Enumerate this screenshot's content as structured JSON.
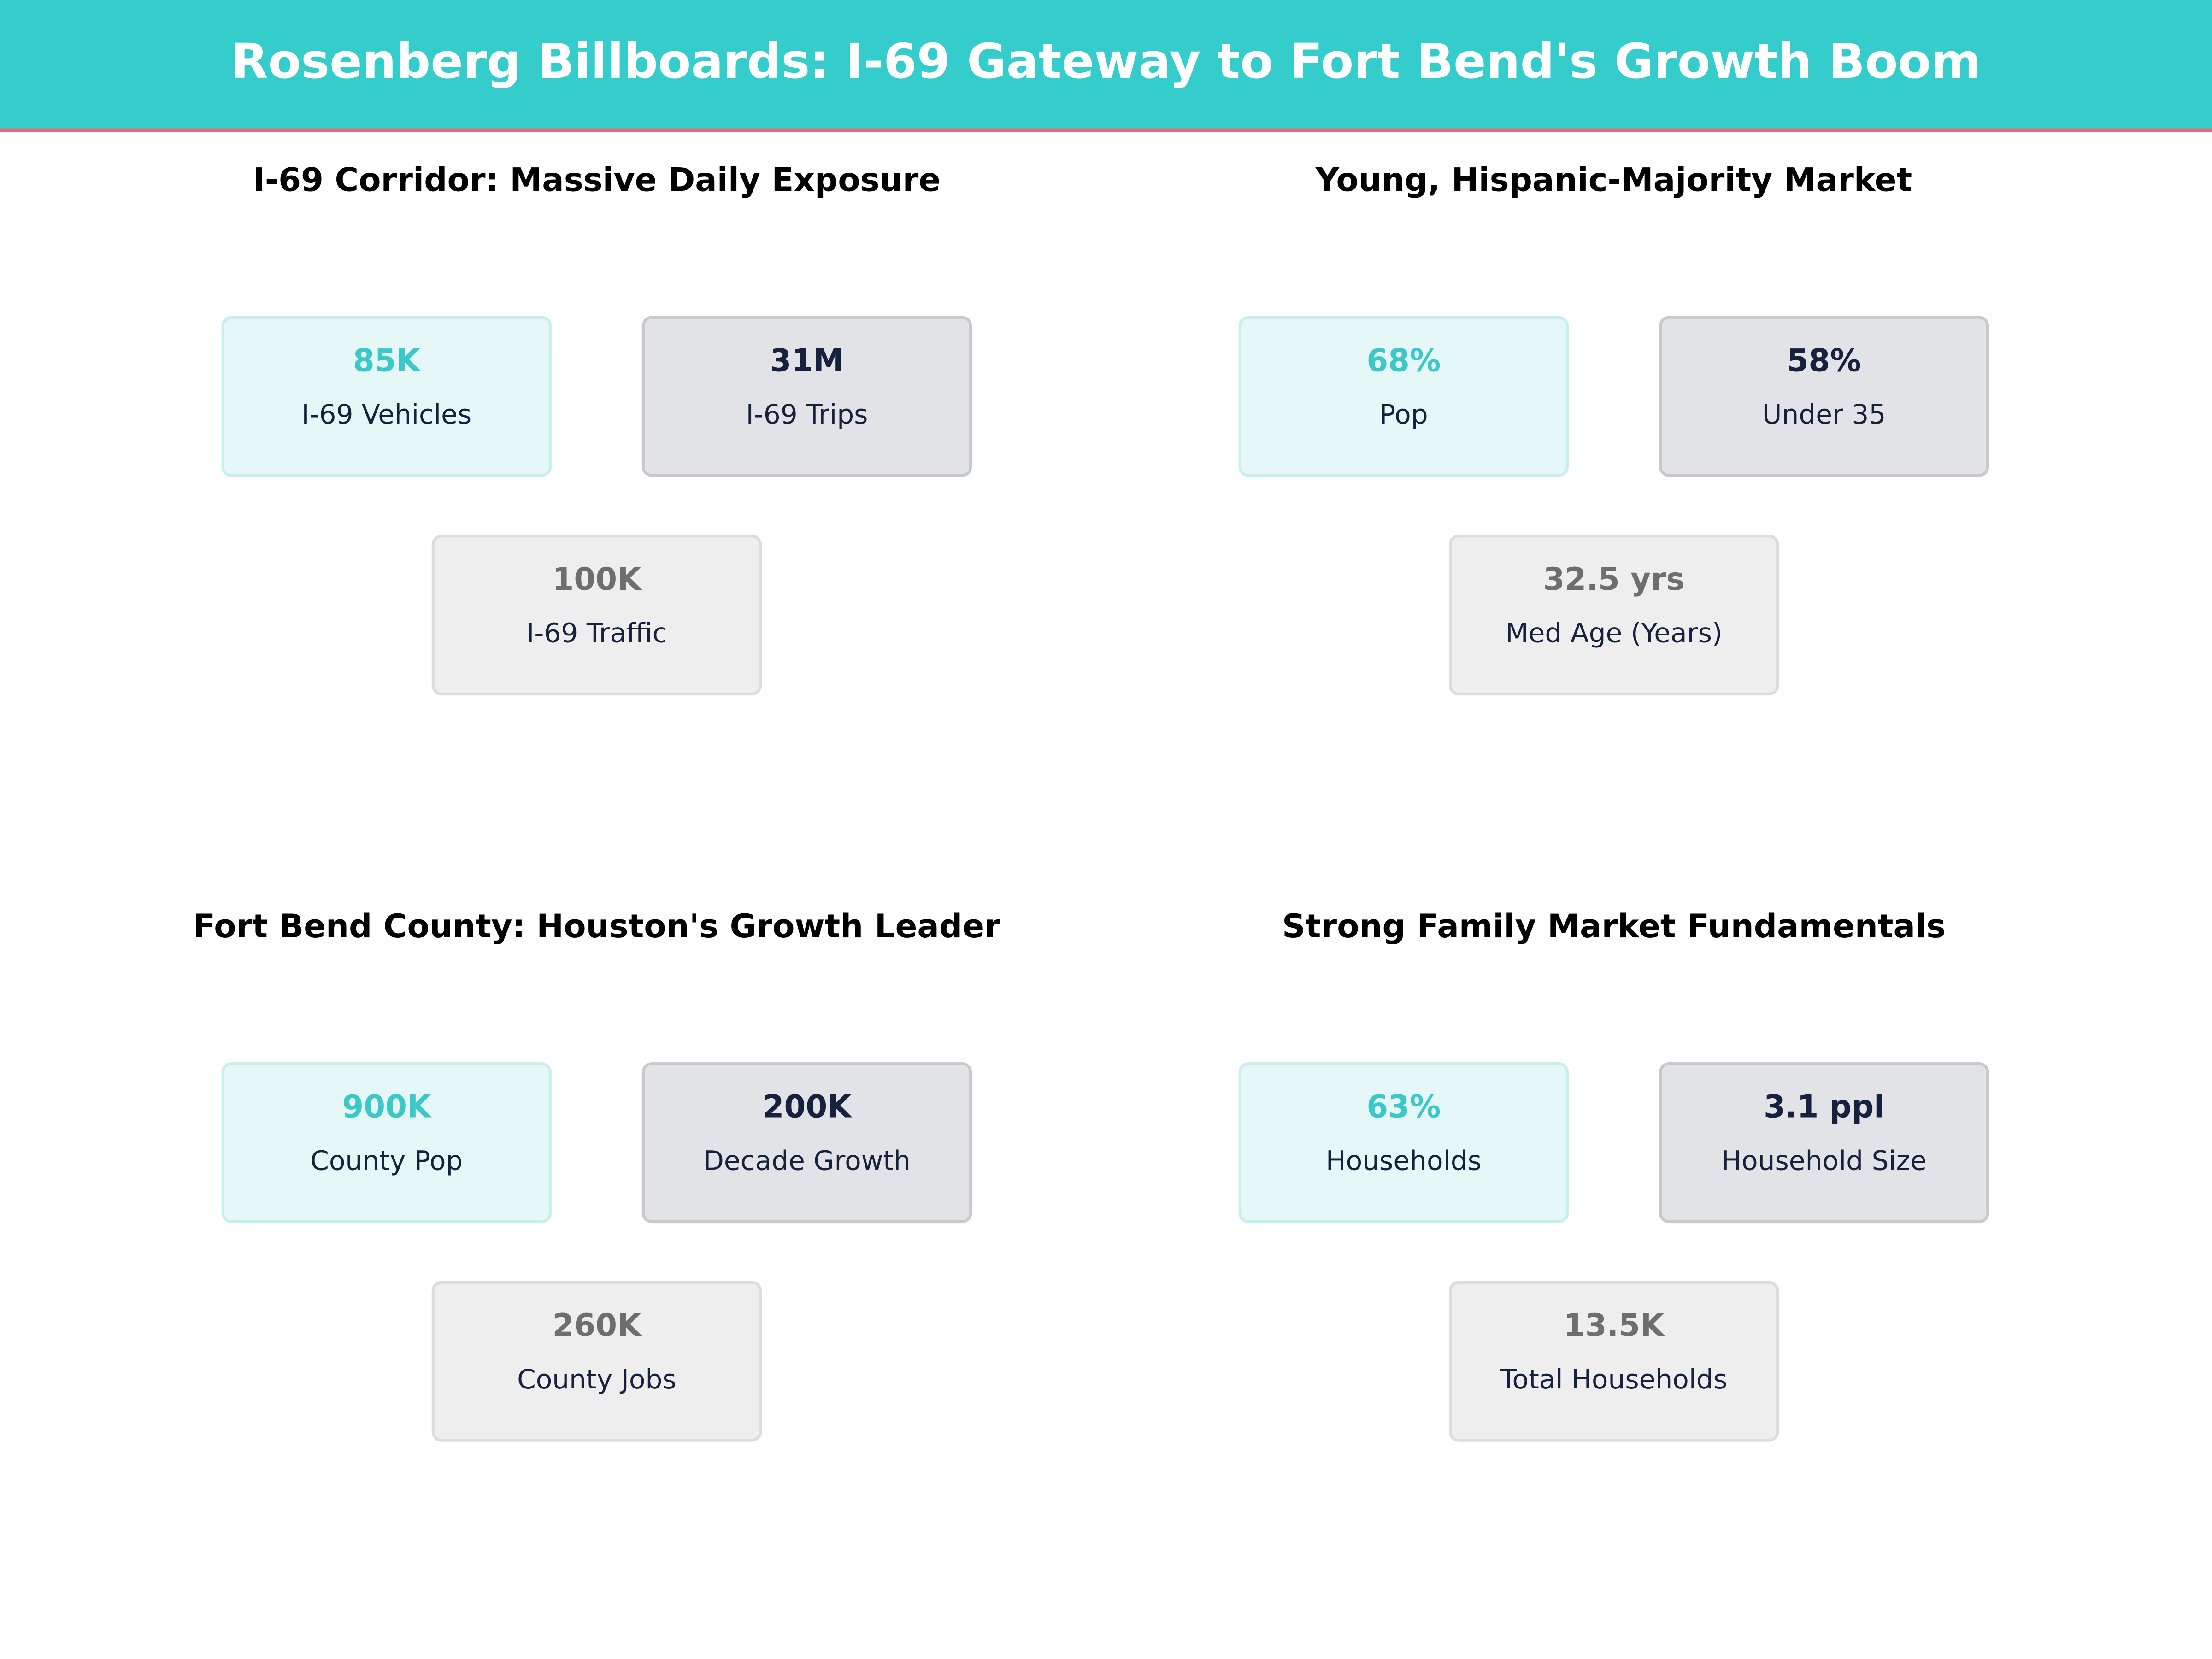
{
  "header": {
    "title": "Rosenberg Billboards: I-69 Gateway to Fort Bend's Growth Boom"
  },
  "panels": [
    {
      "title": "I-69 Corridor: Massive Daily Exposure",
      "cards": [
        {
          "value": "85K",
          "label": "I-69 Vehicles"
        },
        {
          "value": "31M",
          "label": "I-69 Trips"
        },
        {
          "value": "100K",
          "label": "I-69 Traffic"
        }
      ]
    },
    {
      "title": "Young, Hispanic-Majority Market",
      "cards": [
        {
          "value": "68%",
          "label": "Pop"
        },
        {
          "value": "58%",
          "label": "Under 35"
        },
        {
          "value": "32.5 yrs",
          "label": "Med Age (Years)"
        }
      ]
    },
    {
      "title": "Fort Bend County: Houston's Growth Leader",
      "cards": [
        {
          "value": "900K",
          "label": "County Pop"
        },
        {
          "value": "200K",
          "label": "Decade Growth"
        },
        {
          "value": "260K",
          "label": "County Jobs"
        }
      ]
    },
    {
      "title": "Strong Family Market Fundamentals",
      "cards": [
        {
          "value": "63%",
          "label": "Households"
        },
        {
          "value": "3.1 ppl",
          "label": "Household Size"
        },
        {
          "value": "13.5K",
          "label": "Total Households"
        }
      ]
    }
  ]
}
